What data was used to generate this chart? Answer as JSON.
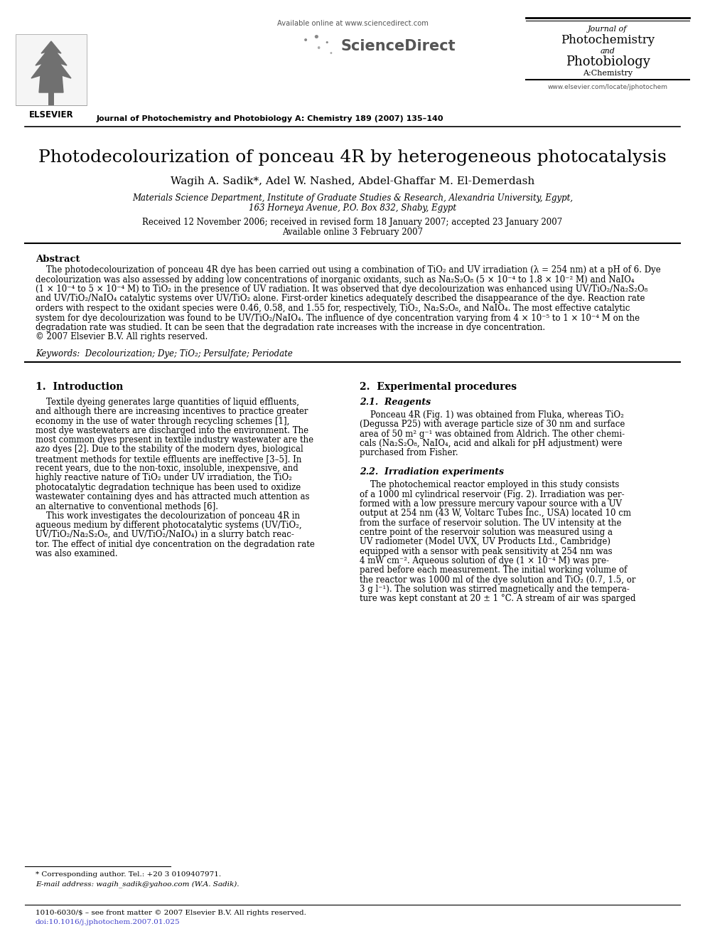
{
  "bg_color": "#ffffff",
  "title": "Photodecolourization of ponceau 4R by heterogeneous photocatalysis",
  "authors": "Wagih A. Sadik*, Adel W. Nashed, Abdel-Ghaffar M. El-Demerdash",
  "affiliation1": "Materials Science Department, Institute of Graduate Studies & Research, Alexandria University, Egypt,",
  "affiliation2": "163 Horneya Avenue, P.O. Box 832, Shaby, Egypt",
  "received": "Received 12 November 2006; received in revised form 18 January 2007; accepted 23 January 2007",
  "available": "Available online 3 February 2007",
  "header_available": "Available online at www.sciencedirect.com",
  "journal_line1": "Journal of Photochemistry and Photobiology A: Chemistry 189 (2007) 135–140",
  "journal_name1": "Journal of",
  "journal_name2": "Photochemistry",
  "journal_name3": "and",
  "journal_name4": "Photobiology",
  "journal_name5": "A:Chemistry",
  "website": "www.elsevier.com/locate/jphotochem",
  "elsevier": "ELSEVIER",
  "abstract_title": "Abstract",
  "keywords": "Keywords:  Decolourization; Dye; TiO₂; Persulfate; Periodate",
  "section1_title": "1.  Introduction",
  "section2_title": "2.  Experimental procedures",
  "section21_title": "2.1.  Reagents",
  "section22_title": "2.2.  Irradiation experiments",
  "footnote1": "* Corresponding author. Tel.: +20 3 0109407971.",
  "footnote2": "E-mail address: wagih_sadik@yahoo.com (W.A. Sadik).",
  "footer1": "1010-6030/$ – see front matter © 2007 Elsevier B.V. All rights reserved.",
  "footer2": "doi:10.1016/j.jphotochem.2007.01.025",
  "abstract_lines": [
    "    The photodecolourization of ponceau 4R dye has been carried out using a combination of TiO₂ and UV irradiation (λ = 254 nm) at a pH of 6. Dye",
    "decolourization was also assessed by adding low concentrations of inorganic oxidants, such as Na₂S₂O₈ (5 × 10⁻⁴ to 1.8 × 10⁻² M) and NaIO₄",
    "(1 × 10⁻⁴ to 5 × 10⁻⁴ M) to TiO₂ in the presence of UV radiation. It was observed that dye decolourization was enhanced using UV/TiO₂/Na₂S₂O₈",
    "and UV/TiO₂/NaIO₄ catalytic systems over UV/TiO₂ alone. First-order kinetics adequately described the disappearance of the dye. Reaction rate",
    "orders with respect to the oxidant species were 0.46, 0.58, and 1.55 for, respectively, TiO₂, Na₂S₂O₈, and NaIO₄. The most effective catalytic",
    "system for dye decolourization was found to be UV/TiO₂/NaIO₄. The influence of dye concentration varying from 4 × 10⁻⁵ to 1 × 10⁻⁴ M on the",
    "degradation rate was studied. It can be seen that the degradation rate increases with the increase in dye concentration.",
    "© 2007 Elsevier B.V. All rights reserved."
  ],
  "intro_lines": [
    "    Textile dyeing generates large quantities of liquid effluents,",
    "and although there are increasing incentives to practice greater",
    "economy in the use of water through recycling schemes [1],",
    "most dye wastewaters are discharged into the environment. The",
    "most common dyes present in textile industry wastewater are the",
    "azo dyes [2]. Due to the stability of the modern dyes, biological",
    "treatment methods for textile effluents are ineffective [3–5]. In",
    "recent years, due to the non-toxic, insoluble, inexpensive, and",
    "highly reactive nature of TiO₂ under UV irradiation, the TiO₂",
    "photocatalytic degradation technique has been used to oxidize",
    "wastewater containing dyes and has attracted much attention as",
    "an alternative to conventional methods [6].",
    "    This work investigates the decolourization of ponceau 4R in",
    "aqueous medium by different photocatalytic systems (UV/TiO₂,",
    "UV/TiO₂/Na₂S₂O₈, and UV/TiO₂/NaIO₄) in a slurry batch reac-",
    "tor. The effect of initial dye concentration on the degradation rate",
    "was also examined."
  ],
  "reagent_lines": [
    "    Ponceau 4R (Fig. 1) was obtained from Fluka, whereas TiO₂",
    "(Degussa P25) with average particle size of 30 nm and surface",
    "area of 50 m² g⁻¹ was obtained from Aldrich. The other chemi-",
    "cals (Na₂S₂O₈, NaIO₄, acid and alkali for pH adjustment) were",
    "purchased from Fisher."
  ],
  "irrad_lines": [
    "    The photochemical reactor employed in this study consists",
    "of a 1000 ml cylindrical reservoir (Fig. 2). Irradiation was per-",
    "formed with a low pressure mercury vapour source with a UV",
    "output at 254 nm (43 W, Voltarc Tubes Inc., USA) located 10 cm",
    "from the surface of reservoir solution. The UV intensity at the",
    "centre point of the reservoir solution was measured using a",
    "UV radiometer (Model UVX, UV Products Ltd., Cambridge)",
    "equipped with a sensor with peak sensitivity at 254 nm was",
    "4 mW cm⁻². Aqueous solution of dye (1 × 10⁻⁴ M) was pre-",
    "pared before each measurement. The initial working volume of",
    "the reactor was 1000 ml of the dye solution and TiO₂ (0.7, 1.5, or",
    "3 g l⁻¹). The solution was stirred magnetically and the tempera-",
    "ture was kept constant at 20 ± 1 °C. A stream of air was sparged"
  ]
}
